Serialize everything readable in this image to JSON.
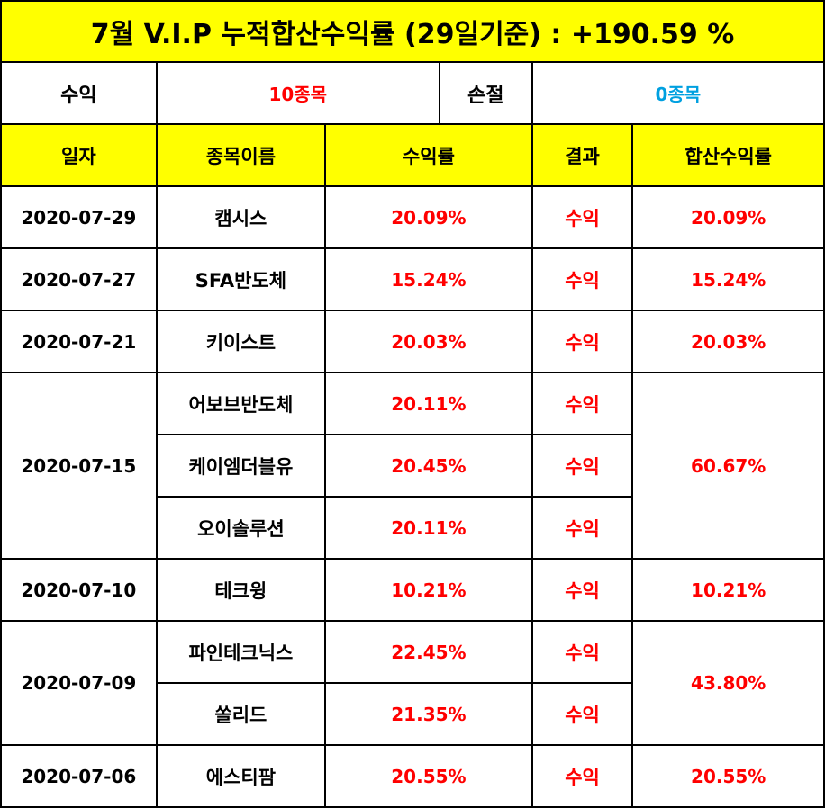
{
  "title": "7월 V.I.P 누적합산수익률 (29일기준) : +190.59 %",
  "summary": {
    "profit_label": "수익",
    "profit_value": "10종목",
    "loss_label": "손절",
    "loss_value": "0종목"
  },
  "headers": {
    "date": "일자",
    "stock": "종목이름",
    "rate": "수익률",
    "result": "결과",
    "cumulative": "합산수익률"
  },
  "groups": [
    {
      "date": "2020-07-29",
      "total": "20.09%",
      "rows": [
        {
          "stock": "캠시스",
          "rate": "20.09%",
          "result": "수익"
        }
      ]
    },
    {
      "date": "2020-07-27",
      "total": "15.24%",
      "rows": [
        {
          "stock": "SFA반도체",
          "rate": "15.24%",
          "result": "수익"
        }
      ]
    },
    {
      "date": "2020-07-21",
      "total": "20.03%",
      "rows": [
        {
          "stock": "키이스트",
          "rate": "20.03%",
          "result": "수익"
        }
      ]
    },
    {
      "date": "2020-07-15",
      "total": "60.67%",
      "rows": [
        {
          "stock": "어보브반도체",
          "rate": "20.11%",
          "result": "수익"
        },
        {
          "stock": "케이엠더블유",
          "rate": "20.45%",
          "result": "수익"
        },
        {
          "stock": "오이솔루션",
          "rate": "20.11%",
          "result": "수익"
        }
      ]
    },
    {
      "date": "2020-07-10",
      "total": "10.21%",
      "rows": [
        {
          "stock": "테크윙",
          "rate": "10.21%",
          "result": "수익"
        }
      ]
    },
    {
      "date": "2020-07-09",
      "total": "43.80%",
      "rows": [
        {
          "stock": "파인테크닉스",
          "rate": "22.45%",
          "result": "수익"
        },
        {
          "stock": "쏠리드",
          "rate": "21.35%",
          "result": "수익"
        }
      ]
    },
    {
      "date": "2020-07-06",
      "total": "20.55%",
      "rows": [
        {
          "stock": "에스티팜",
          "rate": "20.55%",
          "result": "수익"
        }
      ]
    }
  ],
  "colors": {
    "header_bg": "#ffff00",
    "profit": "#ff0000",
    "loss": "#00a0e0"
  }
}
